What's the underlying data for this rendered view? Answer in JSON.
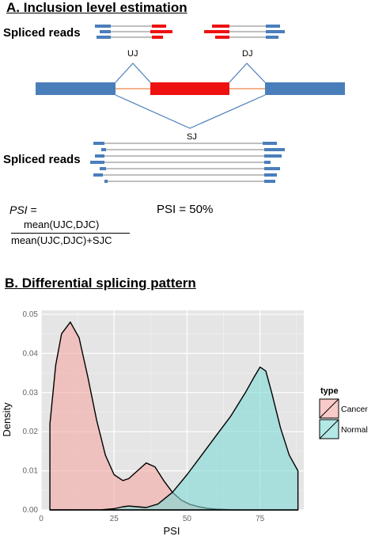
{
  "panelA": {
    "title": "A. Inclusion level estimation",
    "spliced_reads_top": "Spliced reads",
    "spliced_reads_bottom": "Spliced reads",
    "uj_label": "UJ",
    "dj_label": "DJ",
    "sj_label": "SJ",
    "psi_label": "PSI",
    "equals": "=",
    "numerator": "mean(UJC,DJC)",
    "denominator": "mean(UJC,DJC)+SJC",
    "psi_value": "PSI = 50%",
    "colors": {
      "exon_blue": "#4a7ebb",
      "exon_red": "#ee1111",
      "intron_line": "#f2b48c",
      "junction": "#4a7ebb"
    }
  },
  "panelB": {
    "title": "B. Differential splicing pattern"
  },
  "chart_data": {
    "type": "area",
    "xlabel": "PSI",
    "ylabel": "Density",
    "xlim": [
      0,
      90
    ],
    "ylim": [
      0,
      0.051
    ],
    "x_ticks": [
      0,
      25,
      50,
      75
    ],
    "y_ticks": [
      0.0,
      0.01,
      0.02,
      0.03,
      0.04,
      0.05
    ],
    "x_tick_labels": [
      "0",
      "25",
      "50",
      "75"
    ],
    "y_tick_labels": [
      "0.00",
      "0.01",
      "0.02",
      "0.03",
      "0.04",
      "0.05"
    ],
    "grid": true,
    "legend": {
      "title": "type",
      "position": "right",
      "entries": [
        "Cancer",
        "Normal"
      ]
    },
    "series": [
      {
        "name": "Cancer",
        "color": "#f4a7a3",
        "x": [
          3,
          5,
          7,
          10,
          13,
          16,
          19,
          22,
          25,
          28,
          30,
          33,
          36,
          39,
          42,
          45,
          48,
          51,
          54,
          57,
          60,
          63,
          66,
          70,
          75,
          80,
          85,
          88
        ],
        "y": [
          0.022,
          0.037,
          0.045,
          0.048,
          0.044,
          0.034,
          0.023,
          0.014,
          0.009,
          0.0075,
          0.008,
          0.01,
          0.012,
          0.011,
          0.0075,
          0.0045,
          0.0025,
          0.0014,
          0.0008,
          0.0004,
          0.0002,
          0.0001,
          0.0,
          0.0,
          0.0,
          0.0,
          0.0,
          0.0
        ]
      },
      {
        "name": "Normal",
        "color": "#7fd9d4",
        "x": [
          3,
          10,
          20,
          25,
          28,
          30,
          33,
          36,
          40,
          45,
          50,
          55,
          60,
          65,
          70,
          73,
          75,
          77,
          79,
          82,
          85,
          88
        ],
        "y": [
          0.0,
          0.0,
          0.0,
          0.0003,
          0.0008,
          0.001,
          0.0008,
          0.0006,
          0.0015,
          0.0045,
          0.009,
          0.014,
          0.019,
          0.024,
          0.03,
          0.034,
          0.0365,
          0.0355,
          0.03,
          0.021,
          0.014,
          0.01
        ]
      }
    ]
  }
}
